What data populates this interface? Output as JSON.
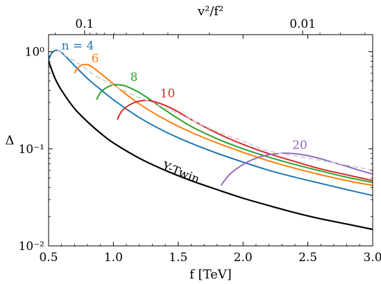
{
  "chart_data": {
    "type": "line",
    "xlabel": "f [TeV]",
    "ylabel": "Δ",
    "top_xlabel": "v²/f²",
    "xlim": [
      0.5,
      3.0
    ],
    "ylim": [
      0.01,
      1.5
    ],
    "yscale": "log",
    "x_ticks": [
      0.5,
      1.0,
      1.5,
      2.0,
      2.5,
      3.0
    ],
    "x_tick_labels": [
      "0.5",
      "1.0",
      "1.5",
      "2.0",
      "2.5",
      "3.0"
    ],
    "y_ticks": [
      0.01,
      0.1,
      1
    ],
    "y_tick_labels": [
      "10⁻²",
      "10⁻¹",
      "10⁰"
    ],
    "top_ticks": [
      0.1,
      0.01
    ],
    "top_tick_labels": [
      "0.1",
      "0.01"
    ],
    "grid": false,
    "legend": "none",
    "series": [
      {
        "name": "Y-Twin",
        "color": "#000000",
        "x": [
          0.5,
          0.55,
          0.6,
          0.7,
          0.8,
          0.9,
          1.0,
          1.2,
          1.4,
          1.6,
          1.8,
          2.0,
          2.2,
          2.4,
          2.6,
          2.8,
          3.0
        ],
        "y": [
          0.8,
          0.53,
          0.4,
          0.26,
          0.19,
          0.145,
          0.115,
          0.08,
          0.06,
          0.047,
          0.038,
          0.031,
          0.026,
          0.022,
          0.019,
          0.0168,
          0.0148
        ]
      },
      {
        "name": "n = 4",
        "color": "#1f77b4",
        "x": [
          0.5,
          0.52,
          0.55,
          0.58,
          0.62,
          0.7,
          0.8,
          0.9,
          1.0,
          1.2,
          1.4,
          1.6,
          1.8,
          2.0,
          2.2,
          2.4,
          2.6,
          2.8,
          3.0
        ],
        "y": [
          0.82,
          0.95,
          1.03,
          1.02,
          0.93,
          0.72,
          0.53,
          0.41,
          0.32,
          0.21,
          0.15,
          0.114,
          0.09,
          0.073,
          0.06,
          0.051,
          0.044,
          0.038,
          0.033
        ]
      },
      {
        "name": "6",
        "color": "#ff7f0e",
        "x": [
          0.7,
          0.72,
          0.75,
          0.78,
          0.82,
          0.88,
          0.95,
          1.05,
          1.2,
          1.4,
          1.6,
          1.8,
          2.0,
          2.2,
          2.4,
          2.6,
          2.8,
          3.0
        ],
        "y": [
          0.6,
          0.67,
          0.72,
          0.74,
          0.72,
          0.63,
          0.53,
          0.41,
          0.29,
          0.2,
          0.148,
          0.115,
          0.092,
          0.075,
          0.063,
          0.054,
          0.047,
          0.042
        ]
      },
      {
        "name": "8",
        "color": "#2ca02c",
        "x": [
          0.87,
          0.9,
          0.95,
          1.0,
          1.05,
          1.1,
          1.2,
          1.3,
          1.4,
          1.6,
          1.8,
          2.0,
          2.2,
          2.4,
          2.6,
          2.8,
          3.0
        ],
        "y": [
          0.32,
          0.38,
          0.43,
          0.455,
          0.455,
          0.44,
          0.38,
          0.31,
          0.25,
          0.17,
          0.127,
          0.1,
          0.082,
          0.069,
          0.059,
          0.051,
          0.045
        ]
      },
      {
        "name": "10",
        "color": "#d62728",
        "x": [
          1.03,
          1.06,
          1.1,
          1.15,
          1.2,
          1.25,
          1.3,
          1.4,
          1.5,
          1.6,
          1.8,
          2.0,
          2.2,
          2.4,
          2.6,
          2.8,
          3.0
        ],
        "y": [
          0.2,
          0.24,
          0.27,
          0.295,
          0.31,
          0.315,
          0.31,
          0.28,
          0.24,
          0.2,
          0.145,
          0.111,
          0.089,
          0.074,
          0.062,
          0.054,
          0.047
        ]
      },
      {
        "name": "20",
        "color": "#9467bd",
        "x": [
          1.83,
          1.9,
          2.0,
          2.1,
          2.2,
          2.3,
          2.4,
          2.5,
          2.6,
          2.7,
          2.8,
          2.9,
          3.0
        ],
        "y": [
          0.042,
          0.055,
          0.069,
          0.08,
          0.087,
          0.09,
          0.089,
          0.085,
          0.079,
          0.072,
          0.066,
          0.06,
          0.055
        ]
      },
      {
        "name": "envelope",
        "color": "#d0d0d0",
        "dashed": true,
        "x": [
          0.57,
          0.65,
          0.75,
          0.85,
          1.0,
          1.15,
          1.3,
          1.5,
          1.8,
          2.0,
          2.2,
          2.5,
          2.8,
          3.0
        ],
        "y": [
          1.03,
          0.88,
          0.73,
          0.58,
          0.45,
          0.36,
          0.3,
          0.23,
          0.15,
          0.12,
          0.095,
          0.08,
          0.068,
          0.06
        ]
      }
    ],
    "annotations": [
      {
        "text": "n = 4",
        "x": 0.6,
        "y": 1.05,
        "color": "#1f77b4"
      },
      {
        "text": "6",
        "x": 0.83,
        "y": 0.78,
        "color": "#ff7f0e"
      },
      {
        "text": "8",
        "x": 1.13,
        "y": 0.5,
        "color": "#2ca02c"
      },
      {
        "text": "10",
        "x": 1.36,
        "y": 0.34,
        "color": "#d62728"
      },
      {
        "text": "20",
        "x": 2.38,
        "y": 0.1,
        "color": "#9467bd"
      },
      {
        "text": "Y-Twin",
        "x": 1.37,
        "y": 0.062,
        "color": "#000000"
      }
    ]
  }
}
